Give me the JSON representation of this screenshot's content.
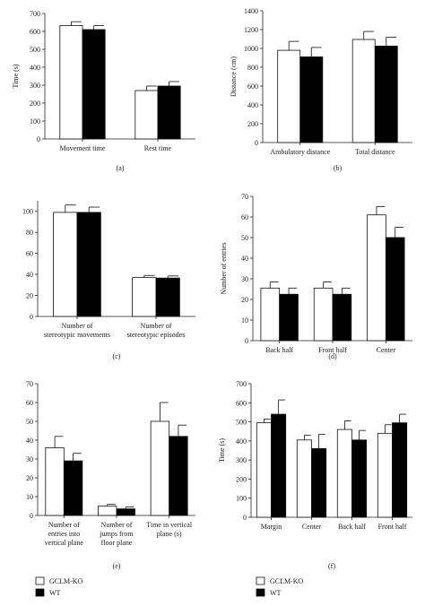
{
  "legend": [
    {
      "name": "GCLM-KO",
      "color": "#ffffff"
    },
    {
      "name": "WT",
      "color": "#000000"
    }
  ],
  "chart_data": [
    {
      "panel": "(a)",
      "type": "bar",
      "ylabel": "Time (s)",
      "ylim": [
        0,
        700
      ],
      "yticks": [
        0,
        100,
        200,
        300,
        400,
        500,
        600,
        700
      ],
      "categories": [
        [
          "Movement time"
        ],
        [
          "Rest time"
        ]
      ],
      "series": [
        {
          "name": "GCLM-KO",
          "values": [
            632,
            270
          ],
          "errors": [
            22,
            25
          ]
        },
        {
          "name": "WT",
          "values": [
            610,
            295
          ],
          "errors": [
            22,
            25
          ]
        }
      ]
    },
    {
      "panel": "(b)",
      "type": "bar",
      "ylabel": "Distance (cm)",
      "ylim": [
        0,
        1400
      ],
      "yticks": [
        0,
        200,
        400,
        600,
        800,
        1000,
        1200,
        1400
      ],
      "categories": [
        [
          "Ambulatory distance"
        ],
        [
          "Total distance"
        ]
      ],
      "series": [
        {
          "name": "GCLM-KO",
          "values": [
            980,
            1095
          ],
          "errors": [
            95,
            85
          ]
        },
        {
          "name": "WT",
          "values": [
            910,
            1025
          ],
          "errors": [
            100,
            95
          ]
        }
      ]
    },
    {
      "panel": "(c)",
      "type": "bar",
      "ylabel": "",
      "ylim": [
        0,
        110
      ],
      "yticks": [
        0,
        20,
        40,
        60,
        80,
        100
      ],
      "categories": [
        [
          "Number of",
          "stereotypic movements"
        ],
        [
          "Number of",
          "stereotypic episodes"
        ]
      ],
      "series": [
        {
          "name": "GCLM-KO",
          "values": [
            99,
            37
          ],
          "errors": [
            7,
            2
          ]
        },
        {
          "name": "WT",
          "values": [
            99,
            36.5
          ],
          "errors": [
            5,
            2
          ]
        }
      ]
    },
    {
      "panel": "(d)",
      "type": "bar",
      "ylabel": "Number of entries",
      "ylim": [
        0,
        70
      ],
      "yticks": [
        0,
        10,
        20,
        30,
        40,
        50,
        60,
        70
      ],
      "categories": [
        [
          "Back half"
        ],
        [
          "Front half"
        ],
        [
          "Center"
        ]
      ],
      "series": [
        {
          "name": "GCLM-KO",
          "values": [
            25.5,
            25.5,
            61
          ],
          "errors": [
            3,
            3,
            4
          ]
        },
        {
          "name": "WT",
          "values": [
            22.5,
            22.5,
            50
          ],
          "errors": [
            3,
            3,
            5
          ]
        }
      ]
    },
    {
      "panel": "(e)",
      "type": "bar",
      "ylabel": "",
      "ylim": [
        0,
        70
      ],
      "yticks": [
        0,
        10,
        20,
        30,
        40,
        50,
        60,
        70
      ],
      "categories": [
        [
          "Number of",
          "entries into",
          "vertical plane"
        ],
        [
          "Number of",
          "jumps from",
          "floor plane"
        ],
        [
          "Time in vertical",
          "plane (s)"
        ]
      ],
      "series": [
        {
          "name": "GCLM-KO",
          "values": [
            36,
            5,
            50
          ],
          "errors": [
            6,
            1,
            10
          ]
        },
        {
          "name": "WT",
          "values": [
            29,
            3.5,
            42
          ],
          "errors": [
            4,
            1,
            6
          ]
        }
      ]
    },
    {
      "panel": "(f)",
      "type": "bar",
      "ylabel": "Time (s)",
      "ylim": [
        0,
        700
      ],
      "yticks": [
        0,
        100,
        200,
        300,
        400,
        500,
        600,
        700
      ],
      "categories": [
        [
          "Margin"
        ],
        [
          "Center"
        ],
        [
          "Back half"
        ],
        [
          "Front half"
        ]
      ],
      "series": [
        {
          "name": "GCLM-KO",
          "values": [
            495,
            405,
            460,
            440
          ],
          "errors": [
            20,
            25,
            45,
            45
          ]
        },
        {
          "name": "WT",
          "values": [
            540,
            360,
            405,
            495
          ],
          "errors": [
            75,
            75,
            50,
            45
          ]
        }
      ]
    }
  ]
}
